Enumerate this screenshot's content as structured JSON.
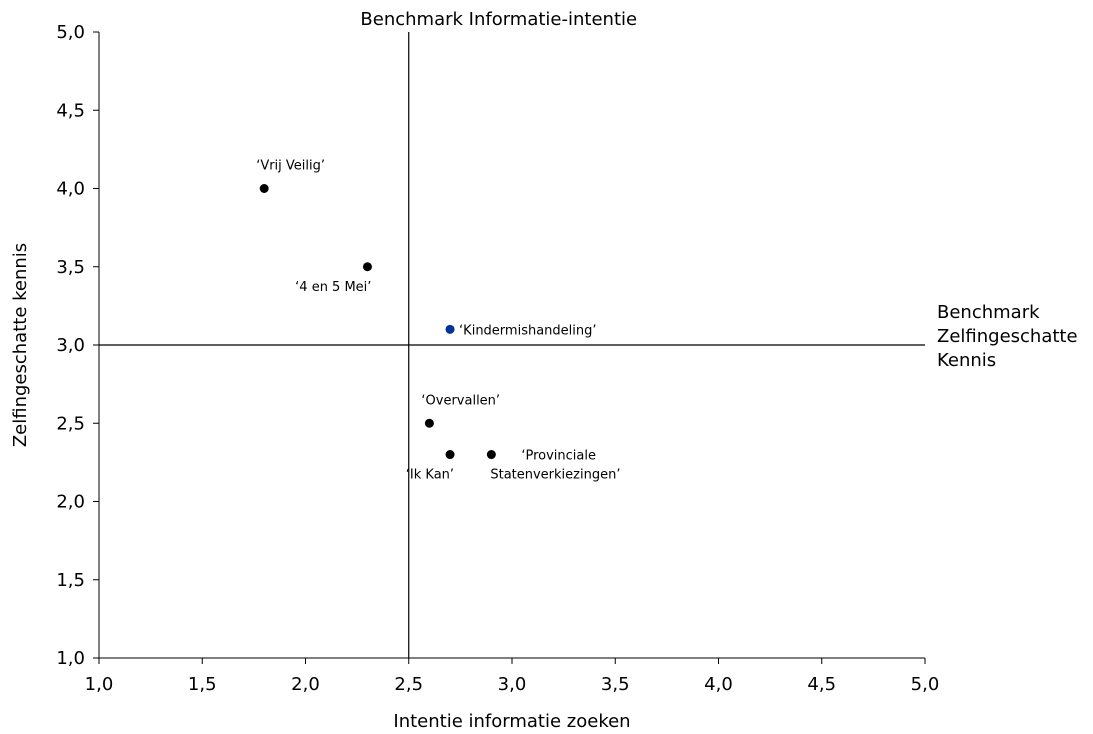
{
  "chart_data": {
    "type": "scatter",
    "title": "",
    "xlabel": "Intentie informatie zoeken",
    "ylabel": "Zelfingeschatte kennis",
    "xlim": [
      1.0,
      5.0
    ],
    "ylim": [
      1.0,
      5.0
    ],
    "x_ticks": [
      1.0,
      1.5,
      2.0,
      2.5,
      3.0,
      3.5,
      4.0,
      4.5,
      5.0
    ],
    "y_ticks": [
      1.0,
      1.5,
      2.0,
      2.5,
      3.0,
      3.5,
      4.0,
      4.5,
      5.0
    ],
    "x_tick_labels": [
      "1,0",
      "1,5",
      "2,0",
      "2,5",
      "3,0",
      "3,5",
      "4,0",
      "4,5",
      "5,0"
    ],
    "y_tick_labels": [
      "1,0",
      "1,5",
      "2,0",
      "2,5",
      "3,0",
      "3,5",
      "4,0",
      "4,5",
      "5,0"
    ],
    "grid": false,
    "benchmarks": {
      "x": {
        "value": 2.5,
        "label": "Benchmark Informatie-intentie"
      },
      "y": {
        "value": 3.0,
        "label_lines": [
          "Benchmark",
          "Zelfingeschatte",
          "Kennis"
        ]
      }
    },
    "points": [
      {
        "x": 1.8,
        "y": 4.0,
        "label_lines": [
          "‘Vrij Veilig’"
        ],
        "color": "#000000",
        "label_pos": "above"
      },
      {
        "x": 2.3,
        "y": 3.5,
        "label_lines": [
          "‘4 en 5 Mei’"
        ],
        "color": "#000000",
        "label_pos": "below-left"
      },
      {
        "x": 2.7,
        "y": 3.1,
        "label_lines": [
          "‘Kindermishandeling’"
        ],
        "color": "#003399",
        "label_pos": "right"
      },
      {
        "x": 2.6,
        "y": 2.5,
        "label_lines": [
          "‘Overvallen’"
        ],
        "color": "#000000",
        "label_pos": "above"
      },
      {
        "x": 2.7,
        "y": 2.3,
        "label_lines": [
          "‘Ik Kan’"
        ],
        "color": "#000000",
        "label_pos": "below-left"
      },
      {
        "x": 2.9,
        "y": 2.3,
        "label_lines": [
          "‘Provinciale",
          "Statenverkiezingen’"
        ],
        "color": "#000000",
        "label_pos": "right-two-line"
      }
    ]
  }
}
